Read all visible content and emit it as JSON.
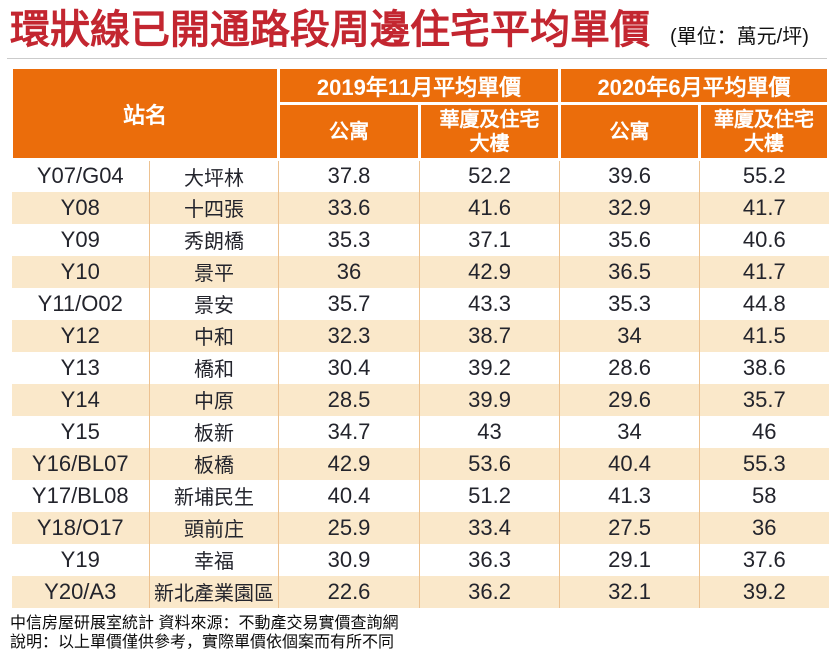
{
  "title": "環狀線已開通路段周邊住宅平均單價",
  "unit_label": "(單位：萬元/坪)",
  "colors": {
    "title_red": "#C32630",
    "header_orange": "#EB6D0B",
    "stripe_beige": "#FAE8CA",
    "divider_tan": "#EDC291",
    "text_dark": "#23242c"
  },
  "table": {
    "station_header": "站名",
    "groups": [
      {
        "label": "2019年11月平均單價",
        "sub": [
          "公寓",
          "華廈及住宅\n大樓"
        ]
      },
      {
        "label": "2020年6月平均單價",
        "sub": [
          "公寓",
          "華廈及住宅\n大樓"
        ]
      }
    ],
    "rows": [
      {
        "code": "Y07/G04",
        "name": "大坪林",
        "values": [
          "37.8",
          "52.2",
          "39.6",
          "55.2"
        ]
      },
      {
        "code": "Y08",
        "name": "十四張",
        "values": [
          "33.6",
          "41.6",
          "32.9",
          "41.7"
        ]
      },
      {
        "code": "Y09",
        "name": "秀朗橋",
        "values": [
          "35.3",
          "37.1",
          "35.6",
          "40.6"
        ]
      },
      {
        "code": "Y10",
        "name": "景平",
        "values": [
          "36",
          "42.9",
          "36.5",
          "41.7"
        ]
      },
      {
        "code": "Y11/O02",
        "name": "景安",
        "values": [
          "35.7",
          "43.3",
          "35.3",
          "44.8"
        ]
      },
      {
        "code": "Y12",
        "name": "中和",
        "values": [
          "32.3",
          "38.7",
          "34",
          "41.5"
        ]
      },
      {
        "code": "Y13",
        "name": "橋和",
        "values": [
          "30.4",
          "39.2",
          "28.6",
          "38.6"
        ]
      },
      {
        "code": "Y14",
        "name": "中原",
        "values": [
          "28.5",
          "39.9",
          "29.6",
          "35.7"
        ]
      },
      {
        "code": "Y15",
        "name": "板新",
        "values": [
          "34.7",
          "43",
          "34",
          "46"
        ]
      },
      {
        "code": "Y16/BL07",
        "name": "板橋",
        "values": [
          "42.9",
          "53.6",
          "40.4",
          "55.3"
        ]
      },
      {
        "code": "Y17/BL08",
        "name": "新埔民生",
        "values": [
          "40.4",
          "51.2",
          "41.3",
          "58"
        ]
      },
      {
        "code": "Y18/O17",
        "name": "頭前庄",
        "values": [
          "25.9",
          "33.4",
          "27.5",
          "36"
        ]
      },
      {
        "code": "Y19",
        "name": "幸福",
        "values": [
          "30.9",
          "36.3",
          "29.1",
          "37.6"
        ]
      },
      {
        "code": "Y20/A3",
        "name": "新北產業園區",
        "values": [
          "22.6",
          "36.2",
          "32.1",
          "39.2"
        ]
      }
    ]
  },
  "footnotes": [
    "中信房屋研展室統計 資料來源：不動產交易實價查詢網",
    "說明：以上單價僅供參考，實際單價依個案而有所不同"
  ],
  "chart_data": {
    "type": "table",
    "title": "環狀線已開通路段周邊住宅平均單價",
    "unit": "萬元/坪",
    "columns": [
      "站名",
      "站名",
      "2019年11月平均單價 公寓",
      "2019年11月平均單價 華廈及住宅大樓",
      "2020年6月平均單價 公寓",
      "2020年6月平均單價 華廈及住宅大樓"
    ],
    "rows": [
      [
        "Y07/G04",
        "大坪林",
        37.8,
        52.2,
        39.6,
        55.2
      ],
      [
        "Y08",
        "十四張",
        33.6,
        41.6,
        32.9,
        41.7
      ],
      [
        "Y09",
        "秀朗橋",
        35.3,
        37.1,
        35.6,
        40.6
      ],
      [
        "Y10",
        "景平",
        36,
        42.9,
        36.5,
        41.7
      ],
      [
        "Y11/O02",
        "景安",
        35.7,
        43.3,
        35.3,
        44.8
      ],
      [
        "Y12",
        "中和",
        32.3,
        38.7,
        34,
        41.5
      ],
      [
        "Y13",
        "橋和",
        30.4,
        39.2,
        28.6,
        38.6
      ],
      [
        "Y14",
        "中原",
        28.5,
        39.9,
        29.6,
        35.7
      ],
      [
        "Y15",
        "板新",
        34.7,
        43,
        34,
        46
      ],
      [
        "Y16/BL07",
        "板橋",
        42.9,
        53.6,
        40.4,
        55.3
      ],
      [
        "Y17/BL08",
        "新埔民生",
        40.4,
        51.2,
        41.3,
        58
      ],
      [
        "Y18/O17",
        "頭前庄",
        25.9,
        33.4,
        27.5,
        36
      ],
      [
        "Y19",
        "幸福",
        30.9,
        36.3,
        29.1,
        37.6
      ],
      [
        "Y20/A3",
        "新北產業園區",
        22.6,
        36.2,
        32.1,
        39.2
      ]
    ]
  }
}
